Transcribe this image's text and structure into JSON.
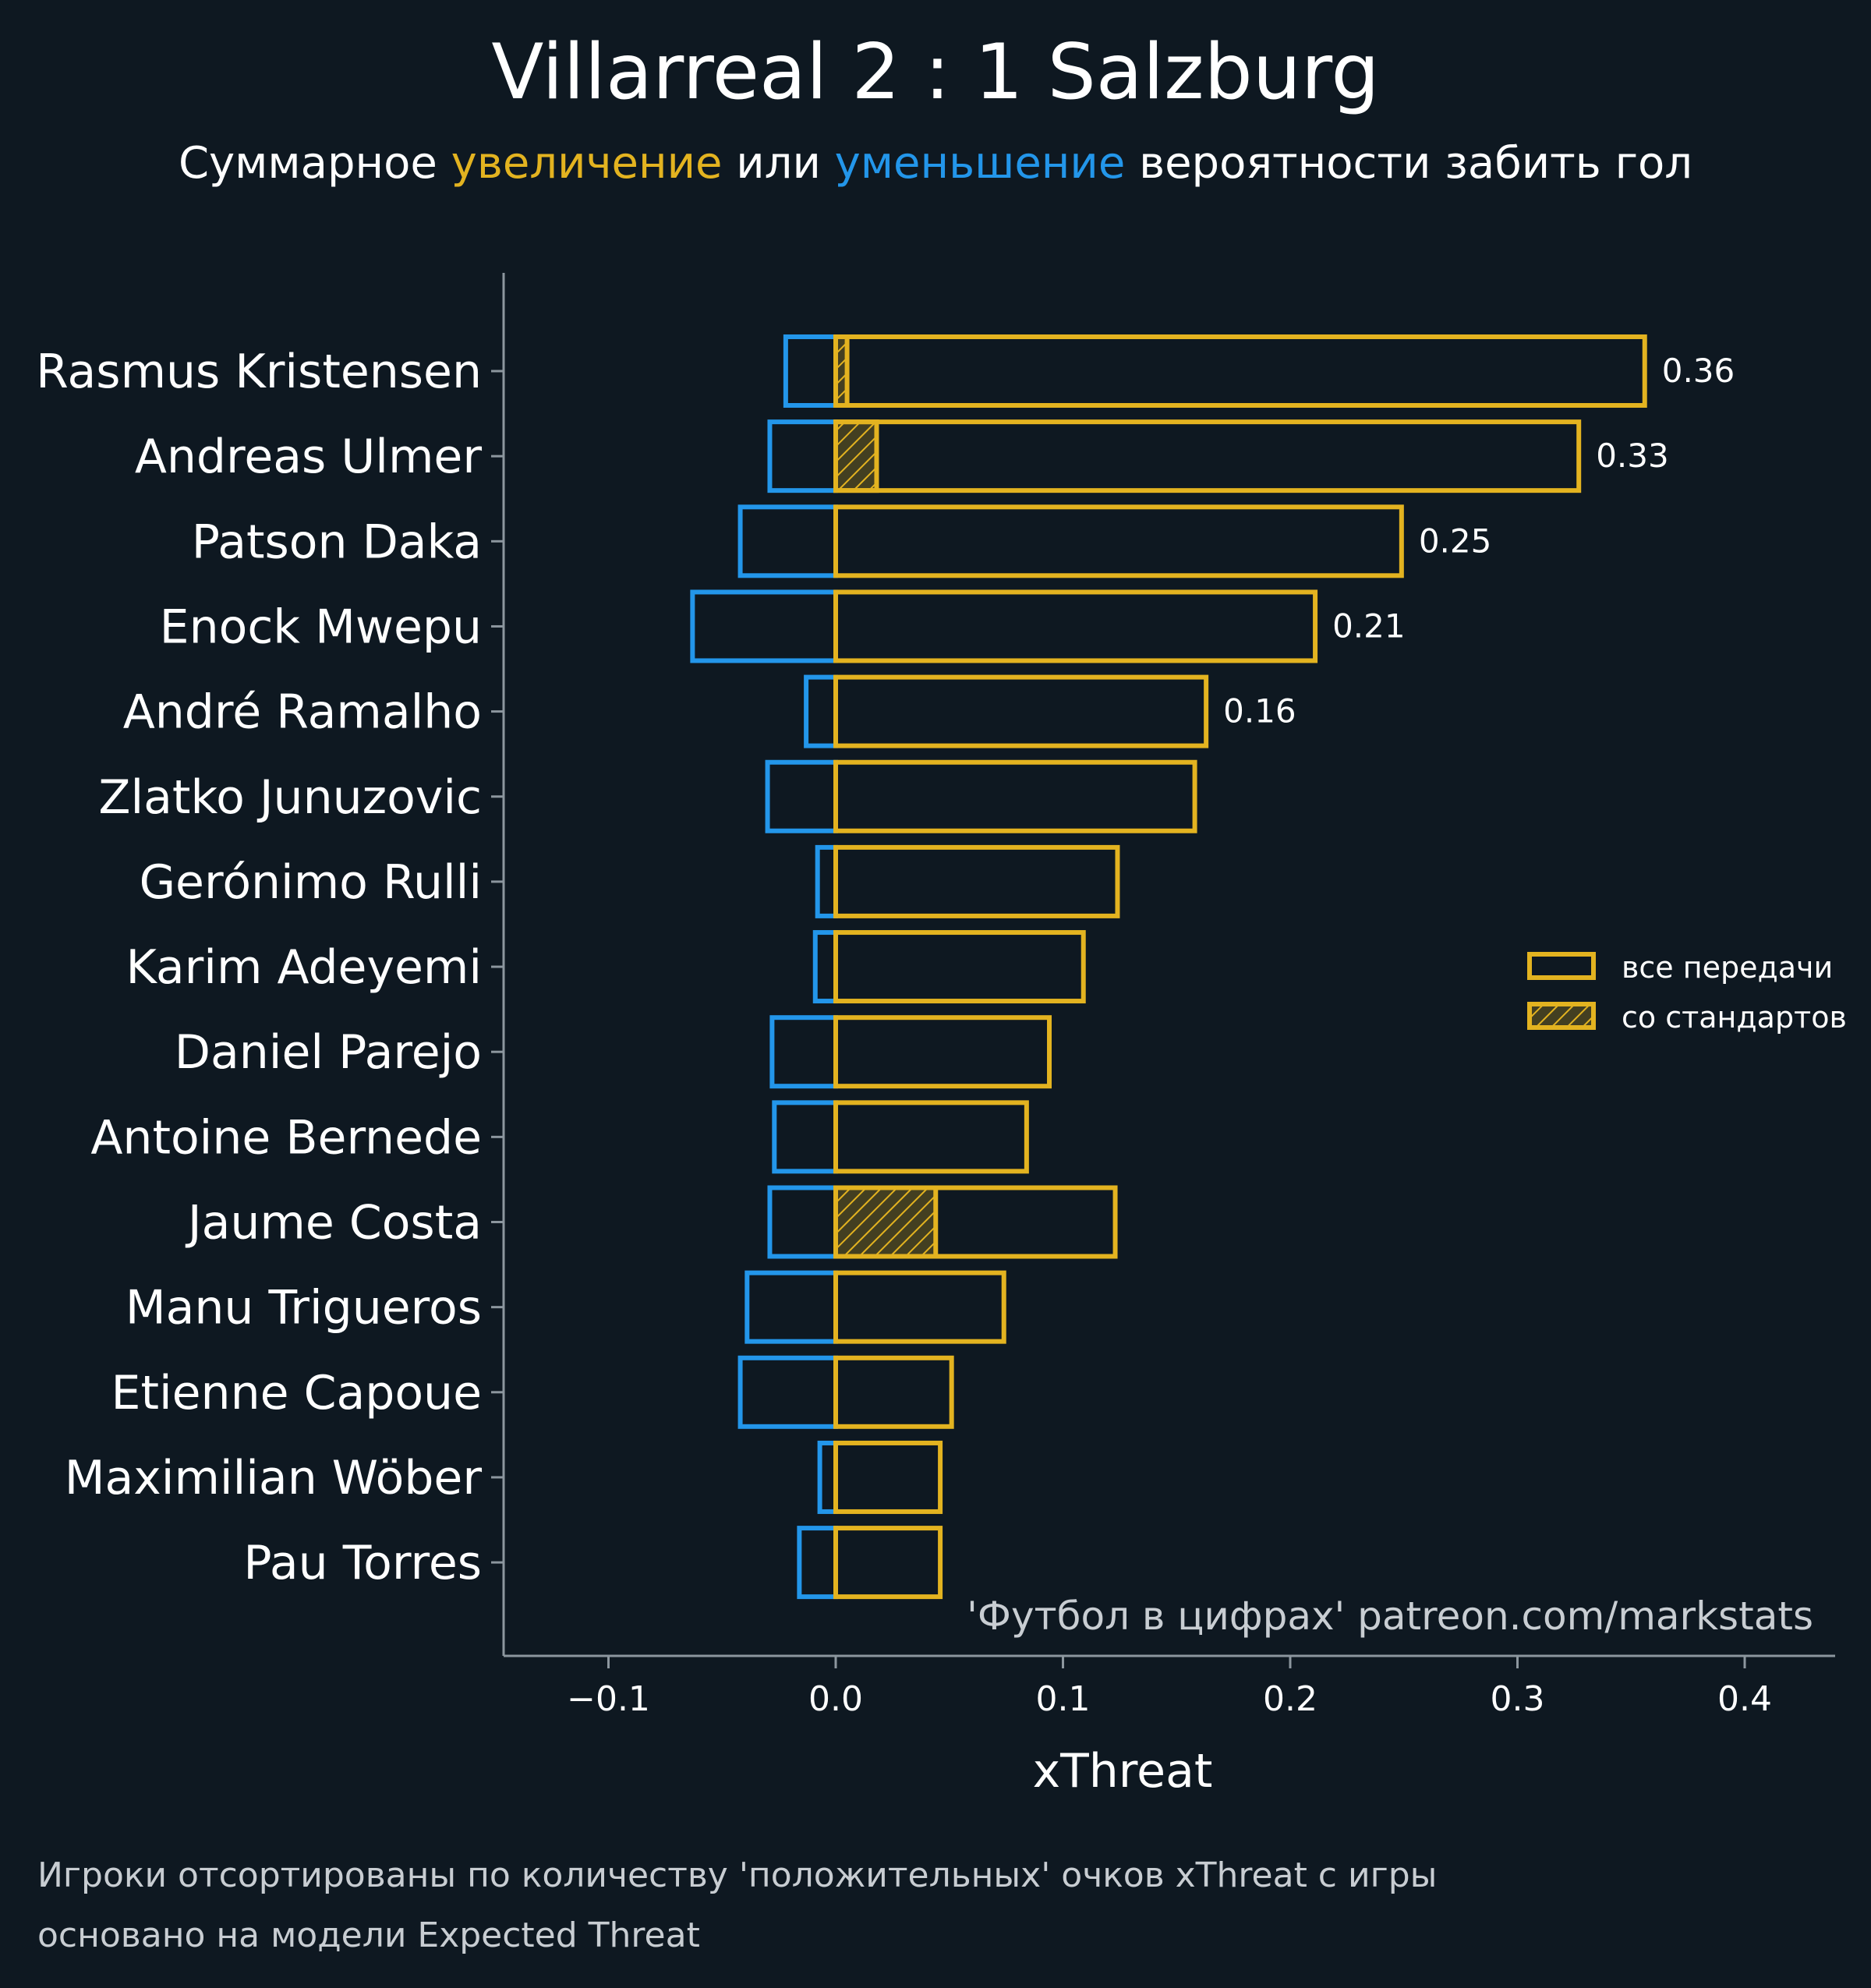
{
  "title": "Villarreal 2 : 1 Salzburg",
  "subtitle": {
    "part1": "Суммарное ",
    "increase": "увеличение",
    "part2": " или ",
    "decrease": "уменьшение",
    "part3": " вероятности забить гол"
  },
  "colors": {
    "background": "#0e1821",
    "positive": "#e3b320",
    "negative": "#2396ea",
    "text": "#ffffff",
    "muted": "#c8cdd2",
    "axis": "#8c969e"
  },
  "legend": {
    "all_passes": "все передачи",
    "set_pieces": "со стандартов"
  },
  "watermark": "'Футбол в цифрах' patreon.com/markstats",
  "footnotes": [
    "Игроки отсортированы по количеству 'положительных' очков xThreat с игры",
    "основано на модели Expected Threat"
  ],
  "chart_data": {
    "type": "bar",
    "orientation": "horizontal",
    "xlabel": "xThreat",
    "xlim": [
      -0.147,
      0.44
    ],
    "xticks": [
      -0.1,
      0.0,
      0.1,
      0.2,
      0.3,
      0.4
    ],
    "xtick_labels": [
      "−0.1",
      "0.0",
      "0.1",
      "0.2",
      "0.3",
      "0.4"
    ],
    "legend_position": "right",
    "categories": [
      "Rasmus Kristensen",
      "Andreas Ulmer",
      "Patson Daka",
      "Enock Mwepu",
      "André Ramalho",
      "Zlatko Junuzovic",
      "Gerónimo Rulli",
      "Karim Adeyemi",
      "Daniel Parejo",
      "Antoine Bernede",
      "Jaume Costa",
      "Manu Trigueros",
      "Etienne Capoue",
      "Maximilian Wöber",
      "Pau Torres"
    ],
    "series": [
      {
        "name": "все передачи",
        "values": [
          0.356,
          0.327,
          0.249,
          0.211,
          0.163,
          0.158,
          0.124,
          0.109,
          0.094,
          0.084,
          0.123,
          0.074,
          0.051,
          0.046,
          0.046
        ]
      },
      {
        "name": "со стандартов",
        "values": [
          0.005,
          0.018,
          0,
          0,
          0,
          0,
          0,
          0,
          0,
          0,
          0.044,
          0,
          0,
          0,
          0
        ]
      },
      {
        "values": [
          -0.022,
          -0.029,
          -0.042,
          -0.063,
          -0.013,
          -0.03,
          -0.008,
          -0.009,
          -0.028,
          -0.027,
          -0.029,
          -0.039,
          -0.042,
          -0.007,
          -0.016
        ]
      }
    ],
    "value_labels": [
      "0.36",
      "0.33",
      "0.25",
      "0.21",
      "0.16",
      "",
      "",
      "",
      "",
      "",
      "",
      "",
      "",
      "",
      ""
    ]
  }
}
